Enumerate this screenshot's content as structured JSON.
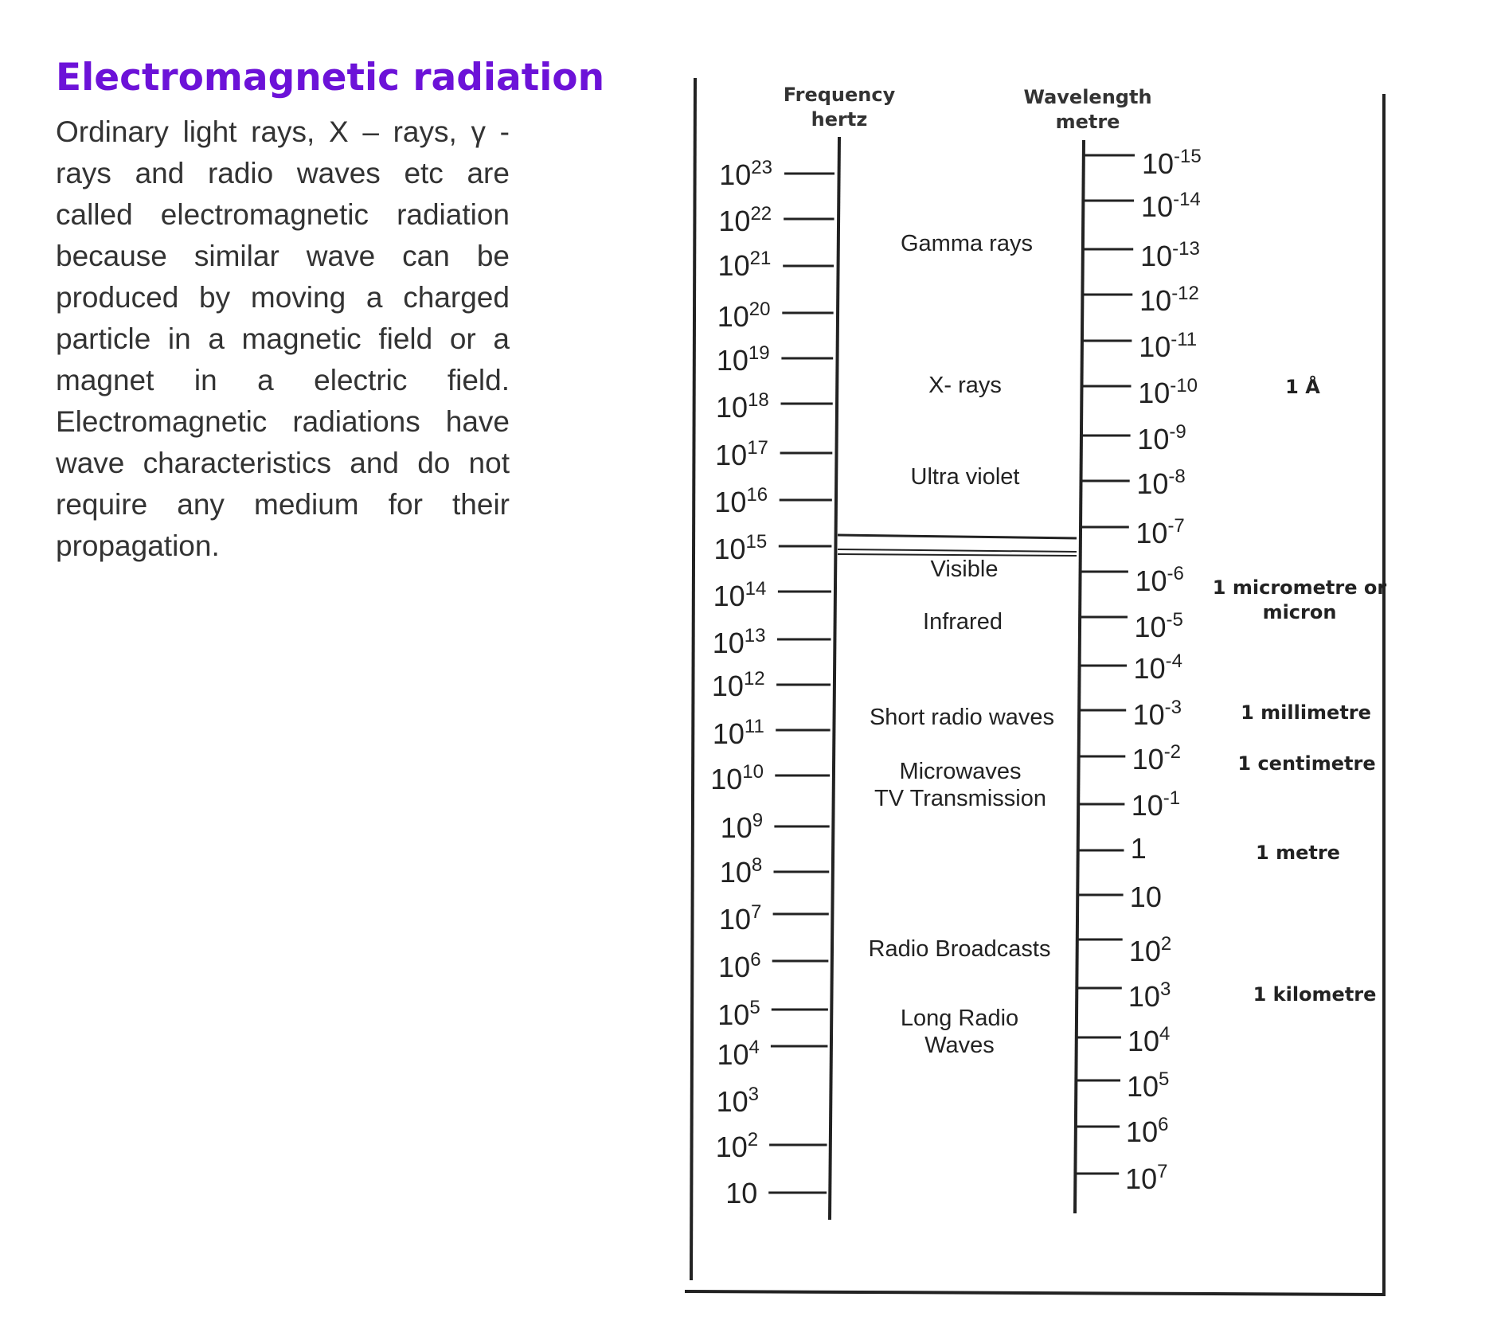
{
  "heading": "Electromagnetic radiation",
  "paragraph_lines": [
    "Ordinary light rays, X – rays, γ -",
    "rays and radio waves etc are",
    "called electromagnetic radiation",
    "because similar wave can be",
    "produced by moving a charged",
    "particle in a magnetic field or a",
    "magnet in a electric field.",
    "Electromagnetic radiations have",
    "wave characteristics and do not",
    "require any medium for their",
    "propagation."
  ],
  "diagram": {
    "frequency_header": [
      "Frequency",
      "hertz"
    ],
    "wavelength_header": [
      "Wavelength",
      "metre"
    ],
    "frequency_scale": [
      {
        "base": "10",
        "exp": "23"
      },
      {
        "base": "10",
        "exp": "22"
      },
      {
        "base": "10",
        "exp": "21"
      },
      {
        "base": "10",
        "exp": "20"
      },
      {
        "base": "10",
        "exp": "19"
      },
      {
        "base": "10",
        "exp": "18"
      },
      {
        "base": "10",
        "exp": "17"
      },
      {
        "base": "10",
        "exp": "16"
      },
      {
        "base": "10",
        "exp": "15"
      },
      {
        "base": "10",
        "exp": "14"
      },
      {
        "base": "10",
        "exp": "13"
      },
      {
        "base": "10",
        "exp": "12"
      },
      {
        "base": "10",
        "exp": "11"
      },
      {
        "base": "10",
        "exp": "10"
      },
      {
        "base": "10",
        "exp": "9"
      },
      {
        "base": "10",
        "exp": "8"
      },
      {
        "base": "10",
        "exp": "7"
      },
      {
        "base": "10",
        "exp": "6"
      },
      {
        "base": "10",
        "exp": "5"
      },
      {
        "base": "10",
        "exp": "4"
      },
      {
        "base": "10",
        "exp": "3"
      },
      {
        "base": "10",
        "exp": "2"
      },
      {
        "base": "10",
        "exp": ""
      }
    ],
    "wavelength_scale": [
      {
        "base": "10",
        "exp": "-15"
      },
      {
        "base": "10",
        "exp": "-14"
      },
      {
        "base": "10",
        "exp": "-13"
      },
      {
        "base": "10",
        "exp": "-12"
      },
      {
        "base": "10",
        "exp": "-11"
      },
      {
        "base": "10",
        "exp": "-10"
      },
      {
        "base": "10",
        "exp": "-9"
      },
      {
        "base": "10",
        "exp": "-8"
      },
      {
        "base": "10",
        "exp": "-7"
      },
      {
        "base": "10",
        "exp": "-6"
      },
      {
        "base": "10",
        "exp": "-5"
      },
      {
        "base": "10",
        "exp": "-4"
      },
      {
        "base": "10",
        "exp": "-3"
      },
      {
        "base": "10",
        "exp": "-2"
      },
      {
        "base": "10",
        "exp": "-1"
      },
      {
        "base": "1",
        "exp": ""
      },
      {
        "base": "10",
        "exp": ""
      },
      {
        "base": "10",
        "exp": "2"
      },
      {
        "base": "10",
        "exp": "3"
      },
      {
        "base": "10",
        "exp": "4"
      },
      {
        "base": "10",
        "exp": "5"
      },
      {
        "base": "10",
        "exp": "6"
      },
      {
        "base": "10",
        "exp": "7"
      }
    ],
    "regions": [
      [
        "Gamma rays"
      ],
      [
        "X- rays"
      ],
      [
        "Ultra violet"
      ],
      [
        "Visible"
      ],
      [
        "Infrared"
      ],
      [
        "Short radio waves"
      ],
      [
        "Microwaves",
        "TV Transmission"
      ],
      [
        "Radio Broadcasts"
      ],
      [
        "Long Radio",
        "Waves"
      ]
    ],
    "units": [
      [
        "1 Å"
      ],
      [
        "1 micrometre or",
        "micron"
      ],
      [
        "1 millimetre"
      ],
      [
        "1 centimetre"
      ],
      [
        "1 metre"
      ],
      [
        "1 kilometre"
      ]
    ]
  }
}
